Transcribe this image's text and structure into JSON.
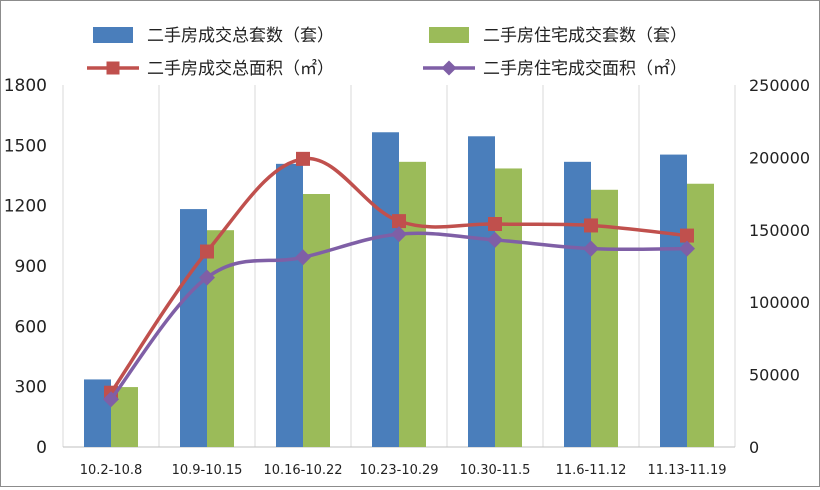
{
  "chart_data": {
    "type": "bar",
    "categories": [
      "10.2-10.8",
      "10.9-10.15",
      "10.16-10.22",
      "10.23-10.29",
      "10.30-11.5",
      "11.6-11.12",
      "11.13-11.19"
    ],
    "series": [
      {
        "name": "二手房成交总套数（套）",
        "kind": "bar",
        "axis": "left",
        "color": "#4a7ebb",
        "values": [
          336,
          1183,
          1408,
          1565,
          1545,
          1418,
          1454
        ]
      },
      {
        "name": "二手房住宅成交套数（套）",
        "kind": "bar",
        "axis": "left",
        "color": "#9bbb59",
        "values": [
          298,
          1078,
          1258,
          1418,
          1385,
          1279,
          1309
        ]
      },
      {
        "name": "二手房成交总面积（㎡）",
        "kind": "line",
        "marker": "square",
        "axis": "right",
        "color": "#c0504d",
        "values": [
          37500,
          135000,
          199000,
          156000,
          154000,
          153000,
          146000
        ]
      },
      {
        "name": "二手房住宅成交面积（㎡）",
        "kind": "line",
        "marker": "diamond",
        "axis": "right",
        "color": "#7f5fa6",
        "values": [
          33000,
          117000,
          131000,
          147000,
          143000,
          137000,
          137000
        ]
      }
    ],
    "y_left": {
      "min": 0,
      "max": 1800,
      "ticks": [
        0,
        300,
        600,
        900,
        1200,
        1500,
        1800
      ]
    },
    "y_right": {
      "min": 0,
      "max": 250000,
      "ticks": [
        0,
        50000,
        100000,
        150000,
        200000,
        250000
      ]
    },
    "legend_position": "top",
    "grid": "vertical"
  }
}
